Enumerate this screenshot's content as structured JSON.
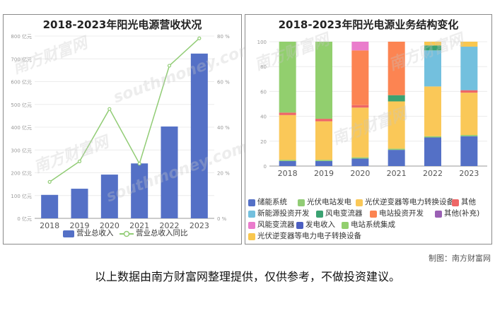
{
  "credit": "制图：南方财富网",
  "footnote": "以上数据由南方财富网整理提供，仅供参考，不做投资建议。",
  "watermark": {
    "cn": "南方财富网",
    "en": "southmoney.com"
  },
  "chart_data": [
    {
      "type": "bar",
      "title": "2018-2023年阳光电源营收状况",
      "categories": [
        "2018",
        "2019",
        "2020",
        "2021",
        "2022",
        "2023"
      ],
      "series": [
        {
          "name": "营业总收入",
          "type": "bar",
          "axis": "left",
          "values": [
            103,
            130,
            192,
            241,
            403,
            723
          ],
          "color": "#5470c6"
        },
        {
          "name": "营业总收入同比",
          "type": "line",
          "axis": "right",
          "values": [
            16,
            25,
            48,
            24,
            67,
            79
          ],
          "color": "#91cc75"
        }
      ],
      "yleft": {
        "ticks": [
          "0 亿元",
          "100 亿元",
          "200 亿元",
          "300 亿元",
          "400 亿元",
          "500 亿元",
          "600 亿元",
          "700 亿元",
          "800 亿元"
        ],
        "ylim": [
          0,
          800
        ]
      },
      "yright": {
        "ticks": [
          "0 %",
          "20 %",
          "40 %",
          "60 %",
          "80 %"
        ],
        "ylim": [
          0,
          80
        ]
      },
      "legend_position": "bottom"
    },
    {
      "type": "stacked-bar",
      "title": "2018-2023年阳光电源业务结构变化",
      "categories": [
        "2018",
        "2019",
        "2020",
        "2021",
        "2022",
        "2023"
      ],
      "ylim": [
        0,
        100
      ],
      "yticks": [
        "0",
        "20",
        "40",
        "60",
        "80",
        "100"
      ],
      "series": [
        {
          "name": "储能系统",
          "color": "#5470c6",
          "values": [
            4,
            4,
            6,
            13,
            23,
            24
          ]
        },
        {
          "name": "光伏电站发电",
          "color": "#91cc75",
          "values": [
            1,
            1,
            1,
            1,
            1,
            1
          ]
        },
        {
          "name": "光伏逆变器等电力转换设备",
          "color": "#fac858",
          "values": [
            36,
            31,
            40,
            38,
            40,
            34
          ]
        },
        {
          "name": "其他",
          "color": "#ee6666",
          "values": [
            2,
            2,
            2,
            0,
            0,
            2
          ]
        },
        {
          "name": "新能源投资开发",
          "color": "#73c0de",
          "values": [
            0,
            0,
            0,
            0,
            29,
            35
          ]
        },
        {
          "name": "风电变流器",
          "color": "#3ba272",
          "values": [
            0,
            0,
            0,
            5,
            4,
            0
          ]
        },
        {
          "name": "电站投资开发",
          "color": "#fc8452",
          "values": [
            0,
            0,
            44,
            43,
            0,
            0
          ]
        },
        {
          "name": "其他(补充)",
          "color": "#9a60b4",
          "values": [
            0,
            0,
            0,
            0,
            0,
            0
          ]
        },
        {
          "name": "风能变流器",
          "color": "#ea7ccc",
          "values": [
            0,
            0,
            7,
            0,
            0,
            0
          ]
        },
        {
          "name": "发电收入",
          "color": "#4c5fc1",
          "values": [
            0,
            0,
            0,
            0,
            0,
            0
          ]
        },
        {
          "name": "电站系统集成",
          "color": "#92cf6e",
          "values": [
            57,
            62,
            0,
            0,
            0,
            0
          ]
        },
        {
          "name": "光伏逆变器等电力电子转换设备",
          "color": "#f9c74f",
          "values": [
            0,
            0,
            0,
            0,
            3,
            4
          ]
        }
      ],
      "legend_position": "bottom"
    }
  ]
}
